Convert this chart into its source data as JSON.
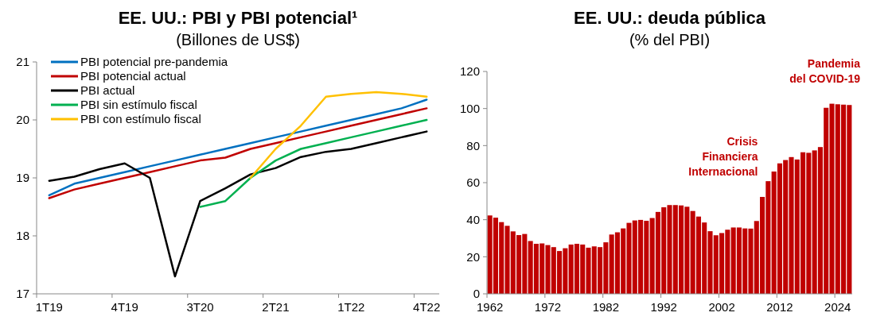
{
  "chart_data": [
    {
      "type": "line",
      "title": "EE. UU.: PBI y PBI potencial¹",
      "subtitle": "(Billones de US$)",
      "categories": [
        "1T19",
        null,
        null,
        "4T19",
        null,
        null,
        "3T20",
        null,
        null,
        "2T21",
        null,
        null,
        "1T22",
        null,
        null,
        "4T22"
      ],
      "series": [
        {
          "name": "PBI potencial pre-pandemia",
          "color": "#0070c0",
          "values": [
            18.7,
            18.9,
            19.0,
            19.1,
            19.2,
            19.3,
            19.4,
            19.5,
            19.6,
            19.7,
            19.8,
            19.9,
            20.0,
            20.1,
            20.2,
            20.35
          ]
        },
        {
          "name": "PBI potencial actual",
          "color": "#c00000",
          "values": [
            18.65,
            18.8,
            18.9,
            19.0,
            19.1,
            19.2,
            19.3,
            19.35,
            19.5,
            19.6,
            19.7,
            19.8,
            19.9,
            20.0,
            20.1,
            20.2
          ]
        },
        {
          "name": "PBI actual",
          "color": "#000000",
          "values": [
            18.95,
            19.02,
            19.15,
            19.25,
            19.0,
            17.3,
            18.6,
            18.82,
            19.06,
            19.17,
            19.36,
            19.45,
            19.5,
            19.6,
            19.7,
            19.8
          ]
        },
        {
          "name": "PBI sin estímulo fiscal",
          "color": "#00b050",
          "values": [
            null,
            null,
            null,
            null,
            null,
            null,
            18.5,
            18.6,
            19.0,
            19.3,
            19.5,
            19.6,
            19.7,
            19.8,
            19.9,
            20.0
          ]
        },
        {
          "name": "PBI con estímulo fiscal",
          "color": "#ffc000",
          "values": [
            null,
            null,
            null,
            null,
            null,
            null,
            null,
            null,
            19.0,
            19.5,
            19.9,
            20.4,
            20.45,
            20.48,
            20.45,
            20.4
          ]
        }
      ],
      "ylim": [
        17,
        21
      ],
      "yticks": [
        17,
        18,
        19,
        20,
        21
      ],
      "grid": false,
      "legend": "top left"
    },
    {
      "type": "bar",
      "title": "EE. UU.: deuda pública",
      "subtitle": "(% del PBI)",
      "categories": [
        "1962",
        null,
        null,
        null,
        null,
        null,
        null,
        null,
        null,
        null,
        "1972",
        null,
        null,
        null,
        null,
        null,
        null,
        null,
        null,
        null,
        "1982",
        null,
        null,
        null,
        null,
        null,
        null,
        null,
        null,
        null,
        "1992",
        null,
        null,
        null,
        null,
        null,
        null,
        null,
        null,
        null,
        "2002",
        null,
        null,
        null,
        null,
        null,
        null,
        null,
        null,
        null,
        "2012",
        null,
        null,
        null,
        null,
        null,
        null,
        null,
        null,
        null,
        "2024",
        null,
        null
      ],
      "values": [
        42.3,
        41.1,
        38.7,
        36.7,
        33.7,
        31.7,
        32.3,
        28.5,
        27.0,
        27.2,
        26.3,
        25.2,
        23.1,
        24.6,
        26.6,
        27.0,
        26.6,
        24.9,
        25.6,
        25.2,
        27.8,
        32.0,
        33.2,
        35.3,
        38.3,
        39.6,
        39.9,
        39.4,
        40.9,
        44.2,
        46.7,
        47.9,
        47.9,
        47.7,
        47.0,
        44.7,
        41.7,
        38.5,
        33.8,
        31.6,
        32.8,
        34.6,
        35.8,
        35.8,
        35.3,
        35.2,
        39.3,
        52.3,
        60.8,
        66.0,
        70.4,
        72.2,
        73.8,
        72.5,
        76.4,
        76.1,
        77.4,
        79.2,
        100.4,
        102.6,
        102.3,
        102.1,
        101.9
      ],
      "color": "#c00000",
      "ylim": [
        0,
        120
      ],
      "yticks": [
        0,
        20,
        40,
        60,
        80,
        100,
        120
      ],
      "grid": false,
      "annotations": [
        "Crisis\nFinanciera\nInternacional",
        "Pandemia\ndel COVID-19"
      ]
    }
  ]
}
